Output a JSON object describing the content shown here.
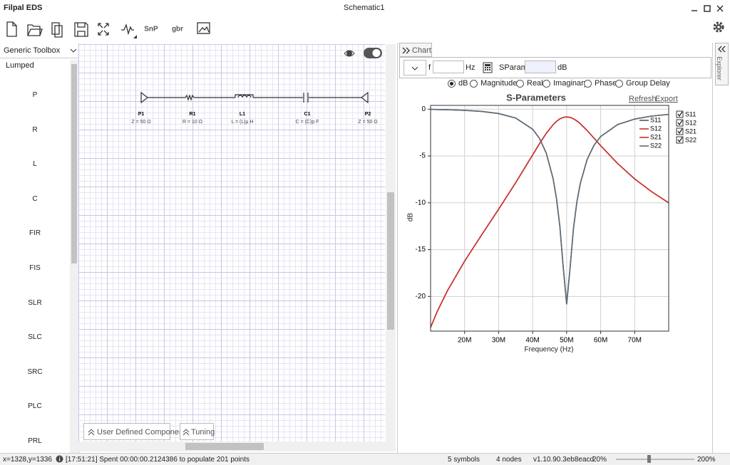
{
  "window": {
    "app_name": "Filpal EDS",
    "document_title": "Schematic1"
  },
  "toolbar": {
    "snp": "SnP",
    "gbr": "gbr"
  },
  "toolbox": {
    "selector": "Generic Toolbox",
    "group": "Lumped",
    "components": [
      "P",
      "R",
      "L",
      "C",
      "FIR",
      "FIS",
      "SLR",
      "SLC",
      "SRC",
      "PLC",
      "PRL"
    ]
  },
  "schematic": {
    "parts": [
      {
        "ref": "P1",
        "value": "Z = 50 Ω"
      },
      {
        "ref": "R1",
        "value": "R = 10 Ω"
      },
      {
        "ref": "L1",
        "value": "L = (L)μ H"
      },
      {
        "ref": "C1",
        "value": "C = (C)p F"
      },
      {
        "ref": "P2",
        "value": "Z = 50 Ω"
      }
    ],
    "user_defined": "User Defined Component",
    "tuning": "Tuning"
  },
  "chart_panel": {
    "tab": "Chart",
    "freq_label": "f",
    "freq_unit": "Hz",
    "sparams": "SParams",
    "sparams_unit": "dB",
    "modes": [
      "dB",
      "Magnitude",
      "Real",
      "Imaginary",
      "Phase",
      "Group Delay"
    ],
    "refresh": "Refresh",
    "export": "Export",
    "explorer": "Explorer"
  },
  "chart_data": {
    "type": "line",
    "title": "S-Parameters",
    "xlabel": "Frequency (Hz)",
    "ylabel": "dB",
    "x": [
      10000000,
      12000000,
      15000000,
      20000000,
      25000000,
      30000000,
      35000000,
      40000000,
      42000000,
      44000000,
      46000000,
      47000000,
      48000000,
      49000000,
      50000000,
      51000000,
      52000000,
      53000000,
      54000000,
      56000000,
      58000000,
      60000000,
      65000000,
      70000000,
      75000000,
      80000000
    ],
    "series": [
      {
        "name": "S11",
        "color": "#4d5866",
        "values": [
          -0.02,
          -0.04,
          -0.06,
          -0.13,
          -0.24,
          -0.47,
          -0.95,
          -2.14,
          -3.11,
          -4.69,
          -7.39,
          -9.5,
          -12.49,
          -16.89,
          -20.83,
          -16.99,
          -12.77,
          -9.93,
          -7.95,
          -5.4,
          -3.88,
          -2.92,
          -1.64,
          -1.06,
          -0.74,
          -0.56
        ]
      },
      {
        "name": "S12",
        "color": "#c8322d",
        "values": [
          -23.31,
          -21.57,
          -19.36,
          -16.23,
          -13.43,
          -10.69,
          -7.86,
          -4.89,
          -3.7,
          -2.59,
          -1.67,
          -1.31,
          -1.04,
          -0.88,
          -0.83,
          -0.88,
          -1.03,
          -1.26,
          -1.55,
          -2.27,
          -3.08,
          -3.9,
          -5.81,
          -7.45,
          -8.82,
          -10.0
        ]
      },
      {
        "name": "S21",
        "color": "#c8322d",
        "values": [
          -23.31,
          -21.57,
          -19.36,
          -16.23,
          -13.43,
          -10.69,
          -7.86,
          -4.89,
          -3.7,
          -2.59,
          -1.67,
          -1.31,
          -1.04,
          -0.88,
          -0.83,
          -0.88,
          -1.03,
          -1.26,
          -1.55,
          -2.27,
          -3.08,
          -3.9,
          -5.81,
          -7.45,
          -8.82,
          -10.0
        ]
      },
      {
        "name": "S22",
        "color": "#5f6b75",
        "values": [
          -0.02,
          -0.04,
          -0.06,
          -0.13,
          -0.24,
          -0.47,
          -0.95,
          -2.14,
          -3.11,
          -4.69,
          -7.39,
          -9.5,
          -12.49,
          -16.89,
          -20.83,
          -16.99,
          -12.77,
          -9.93,
          -7.95,
          -5.4,
          -3.88,
          -2.92,
          -1.64,
          -1.06,
          -0.74,
          -0.56
        ]
      }
    ],
    "xlim": [
      10000000,
      80000000
    ],
    "xticks": [
      {
        "value": 20000000,
        "label": "20M"
      },
      {
        "value": 30000000,
        "label": "30M"
      },
      {
        "value": 40000000,
        "label": "40M"
      },
      {
        "value": 50000000,
        "label": "50M"
      },
      {
        "value": 60000000,
        "label": "60M"
      },
      {
        "value": 70000000,
        "label": "70M"
      }
    ],
    "ylim": [
      -23.7,
      0.4
    ],
    "yticks": [
      0,
      -5,
      -10,
      -15,
      -20
    ],
    "grid": true
  },
  "status_bar": {
    "coords": "x=1328,y=1336",
    "message": "[17:51:21] Spent 00:00:00.2124386 to populate 201 points",
    "symbols": "5 symbols",
    "nodes": "4 nodes",
    "version": "v1.10.90.3eb8eacd",
    "zoom": "20%",
    "zoom_max": "200%"
  }
}
